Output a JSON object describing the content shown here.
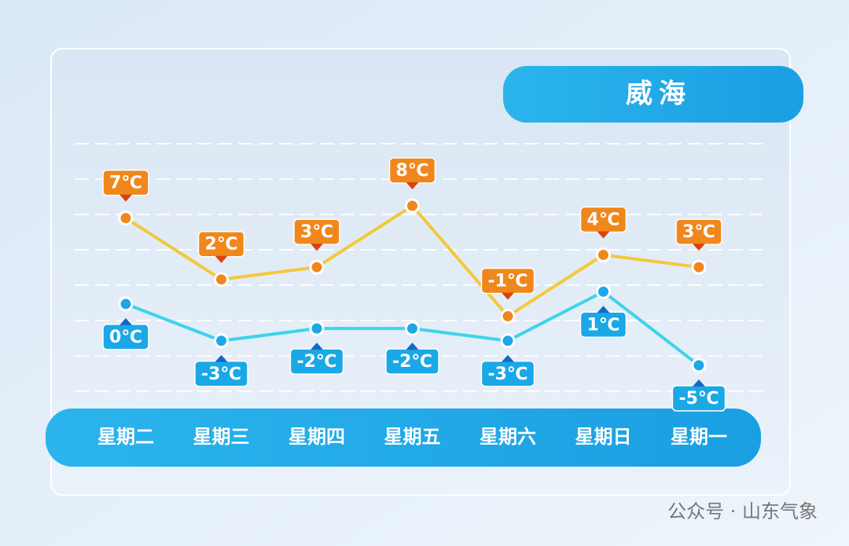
{
  "chart_data": {
    "type": "line",
    "title": "威海",
    "categories": [
      "星期二",
      "星期三",
      "星期四",
      "星期五",
      "星期六",
      "星期日",
      "星期一"
    ],
    "series": [
      {
        "color": "#f3c93a",
        "label_color": "#f0871c",
        "values": [
          7,
          2,
          3,
          8,
          -1,
          4,
          3
        ],
        "value_labels": [
          "7℃",
          "2℃",
          "3℃",
          "8℃",
          "-1℃",
          "4℃",
          "3℃"
        ]
      },
      {
        "color": "#3fd3ec",
        "label_color": "#1aa8e6",
        "values": [
          0,
          -3,
          -2,
          -2,
          -3,
          1,
          -5
        ],
        "value_labels": [
          "0℃",
          "-3℃",
          "-2℃",
          "-2℃",
          "-3℃",
          "1℃",
          "-5℃"
        ]
      }
    ]
  },
  "source": "公众号 · 山东气象"
}
